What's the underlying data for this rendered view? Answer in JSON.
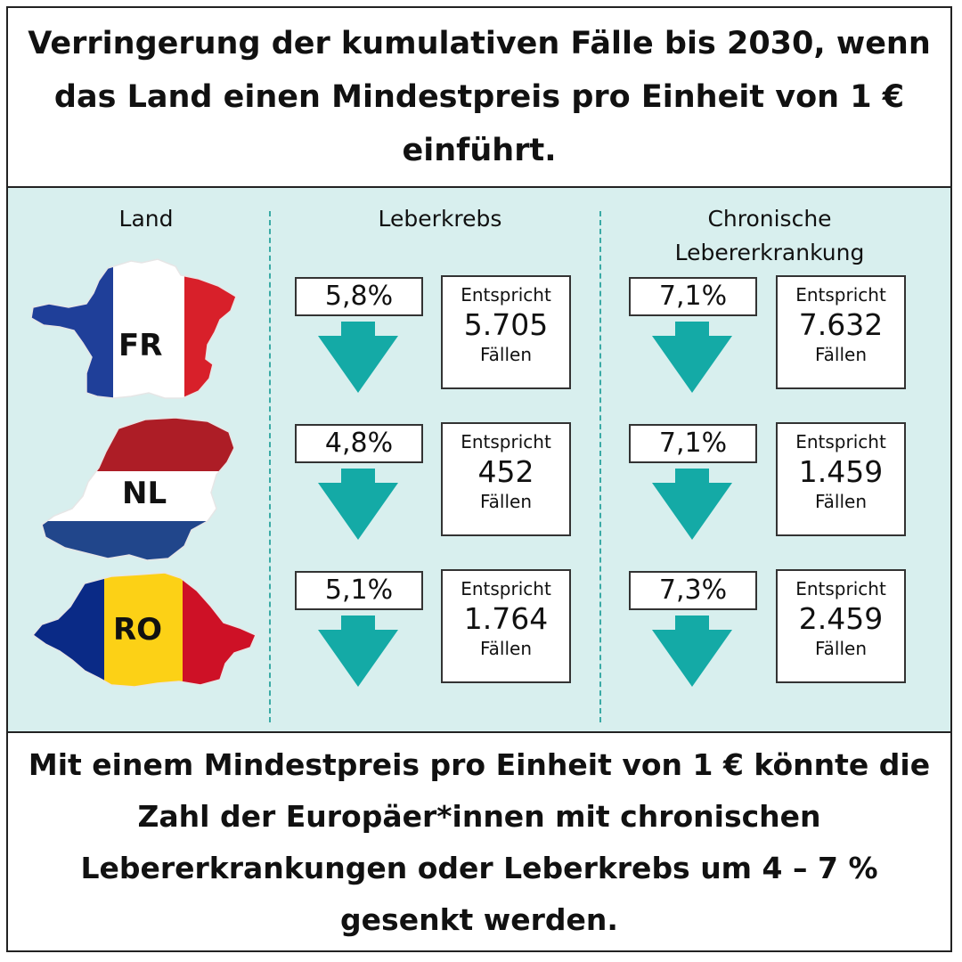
{
  "title": "Verringerung der kumulativen Fälle bis 2030, wenn das Land einen Mindestpreis pro Einheit von 1 € einführt.",
  "columns": {
    "land": "Land",
    "leberkrebs": "Leberkrebs",
    "chronisch_line1": "Chronische",
    "chronisch_line2": "Lebererkrankung"
  },
  "case_label": "Entspricht",
  "case_unit": "Fällen",
  "rows": [
    {
      "code": "FR",
      "leberkrebs": {
        "pct": "5,8%",
        "cases": "5.705"
      },
      "chronisch": {
        "pct": "7,1%",
        "cases": "7.632"
      }
    },
    {
      "code": "NL",
      "leberkrebs": {
        "pct": "4,8%",
        "cases": "452"
      },
      "chronisch": {
        "pct": "7,1%",
        "cases": "1.459"
      }
    },
    {
      "code": "RO",
      "leberkrebs": {
        "pct": "5,1%",
        "cases": "1.764"
      },
      "chronisch": {
        "pct": "7,3%",
        "cases": "2.459"
      }
    }
  ],
  "conclusion": "Mit einem Mindestpreis pro Einheit von 1 € könnte die Zahl der Europäer*innen mit chronischen Lebererkrankungen oder Leberkrebs um 4 – 7 % gesenkt werden.",
  "chart_data": {
    "type": "table",
    "title": "Verringerung der kumulativen Fälle bis 2030, wenn das Land einen Mindestpreis pro Einheit von 1 € einführt.",
    "categories": [
      "FR",
      "NL",
      "RO"
    ],
    "series": [
      {
        "name": "Leberkrebs",
        "values": [
          5.8,
          4.8,
          5.1
        ],
        "cases": [
          5705,
          452,
          1764
        ]
      },
      {
        "name": "Chronische Lebererkrankung",
        "values": [
          7.1,
          7.1,
          7.3
        ],
        "cases": [
          7632,
          1459,
          2459
        ]
      }
    ]
  },
  "colors": {
    "panel": "#d8efee",
    "arrow": "#14aaa6",
    "divider": "#3aaaa5",
    "fr": [
      "#1f3f99",
      "#ffffff",
      "#d8202a"
    ],
    "nl": [
      "#ad1d26",
      "#ffffff",
      "#21468b"
    ],
    "ro": [
      "#0a2a86",
      "#fcd116",
      "#ce1126"
    ]
  },
  "icons": {
    "arrow": "down-arrow-icon",
    "maps": [
      "france-map-icon",
      "netherlands-map-icon",
      "romania-map-icon"
    ]
  }
}
